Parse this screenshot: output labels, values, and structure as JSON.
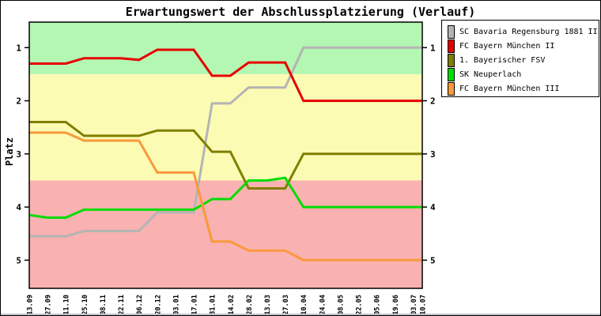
{
  "title": "Erwartungswert der Abschlussplatzierung (Verlauf)",
  "y_axis": {
    "label": "Platz",
    "ticks": [
      1,
      2,
      3,
      4,
      5
    ]
  },
  "chart_data": {
    "type": "line",
    "title": "Erwartungswert der Abschlussplatzierung (Verlauf)",
    "xlabel": "",
    "ylabel": "Platz",
    "y_inverted": true,
    "ylim": [
      0.52,
      5.53
    ],
    "yticks": [
      1,
      2,
      3,
      4,
      5
    ],
    "grid": false,
    "legend_position": "outside-top-right",
    "x_tick_labels": [
      "13.09",
      "27.09",
      "11.10",
      "25.10",
      "08.11",
      "22.11",
      "06.12",
      "20.12",
      "03.01",
      "17.01",
      "31.01",
      "14.02",
      "28.02",
      "13.03",
      "27.03",
      "10.04",
      "24.04",
      "08.05",
      "22.05",
      "05.06",
      "19.06",
      "03.07",
      "10.07"
    ],
    "x_days": [
      0,
      14,
      28,
      42,
      56,
      70,
      84,
      98,
      112,
      126,
      140,
      154,
      168,
      182,
      196,
      210,
      224,
      238,
      252,
      266,
      280,
      294,
      301
    ],
    "bands": [
      {
        "label": "top-zone",
        "from": 0.52,
        "to": 1.5,
        "color": "#b3f7b3"
      },
      {
        "label": "mid-zone",
        "from": 1.5,
        "to": 3.5,
        "color": "#fbfbb3"
      },
      {
        "label": "bottom-zone",
        "from": 3.5,
        "to": 5.53,
        "color": "#f9b1b1"
      }
    ],
    "series": [
      {
        "name": "SC Bavaria Regensburg 1881 II",
        "color": "#b4b4b4",
        "values": [
          4.55,
          4.55,
          4.55,
          4.45,
          4.45,
          4.45,
          4.45,
          4.1,
          4.1,
          4.1,
          2.05,
          2.05,
          1.75,
          1.75,
          1.75,
          1,
          1,
          1,
          1,
          1,
          1,
          1,
          1
        ]
      },
      {
        "name": "FC Bayern München II",
        "color": "#e60000",
        "values": [
          1.3,
          1.3,
          1.3,
          1.2,
          1.2,
          1.2,
          1.23,
          1.04,
          1.04,
          1.04,
          1.53,
          1.53,
          1.28,
          1.28,
          1.28,
          2,
          2,
          2,
          2,
          2,
          2,
          2,
          2
        ]
      },
      {
        "name": "1. Bayerischer FSV",
        "color": "#7f7f00",
        "values": [
          2.4,
          2.4,
          2.4,
          2.66,
          2.66,
          2.66,
          2.66,
          2.56,
          2.56,
          2.56,
          2.96,
          2.96,
          3.65,
          3.65,
          3.65,
          3,
          3,
          3,
          3,
          3,
          3,
          3,
          3
        ]
      },
      {
        "name": "SK Neuperlach",
        "color": "#00dd00",
        "values": [
          4.15,
          4.2,
          4.2,
          4.05,
          4.05,
          4.05,
          4.05,
          4.05,
          4.05,
          4.05,
          3.85,
          3.85,
          3.5,
          3.5,
          3.45,
          4,
          4,
          4,
          4,
          4,
          4,
          4,
          4
        ]
      },
      {
        "name": "FC Bayern München III",
        "color": "#f9993b",
        "values": [
          2.6,
          2.6,
          2.6,
          2.75,
          2.75,
          2.75,
          2.75,
          3.35,
          3.35,
          3.35,
          4.65,
          4.65,
          4.82,
          4.82,
          4.82,
          5,
          5,
          5,
          5,
          5,
          5,
          5,
          5
        ]
      }
    ]
  }
}
